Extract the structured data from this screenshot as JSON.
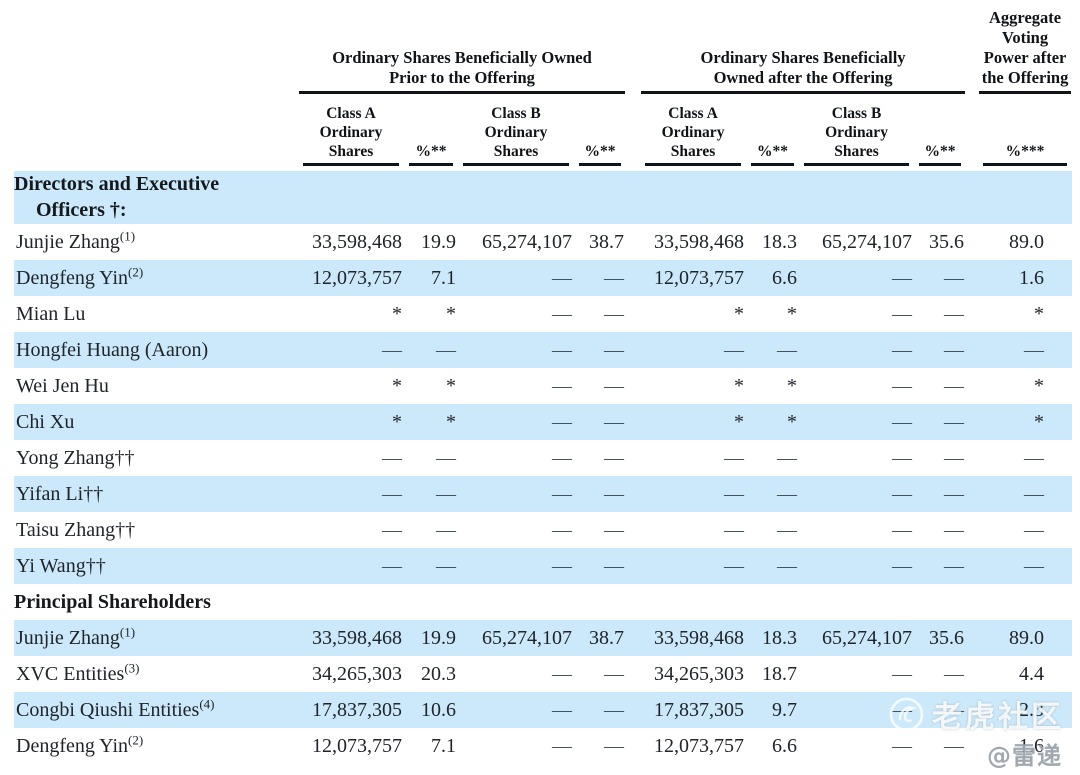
{
  "table": {
    "groups": [
      {
        "lines": [
          "Ordinary Shares Beneficially Owned",
          "Prior to the Offering"
        ],
        "span": 4
      },
      {
        "lines": [
          "Ordinary Shares Beneficially",
          "Owned after the Offering"
        ],
        "span": 4
      },
      {
        "lines": [
          "Aggregate",
          "Voting",
          "Power after",
          "the Offering"
        ],
        "span": 1
      }
    ],
    "columns": [
      {
        "lines": [
          "Class A",
          "Ordinary",
          "Shares"
        ]
      },
      {
        "lines": [
          "%**"
        ]
      },
      {
        "lines": [
          "Class B",
          "Ordinary",
          "Shares"
        ]
      },
      {
        "lines": [
          "%**"
        ]
      },
      {
        "lines": [
          "Class A",
          "Ordinary",
          "Shares"
        ]
      },
      {
        "lines": [
          "%**"
        ]
      },
      {
        "lines": [
          "Class B",
          "Ordinary",
          "Shares"
        ]
      },
      {
        "lines": [
          "%**"
        ]
      },
      {
        "lines": [
          "%***"
        ]
      }
    ],
    "rows": [
      {
        "type": "section",
        "shade": true,
        "lines": [
          "Directors and Executive",
          "Officers †:"
        ]
      },
      {
        "type": "data",
        "shade": false,
        "name": "Junjie Zhang",
        "sup": "(1)",
        "values": [
          "33,598,468",
          "19.9",
          "65,274,107",
          "38.7",
          "33,598,468",
          "18.3",
          "65,274,107",
          "35.6",
          "89.0"
        ]
      },
      {
        "type": "data",
        "shade": true,
        "name": "Dengfeng Yin",
        "sup": "(2)",
        "values": [
          "12,073,757",
          "7.1",
          "—",
          "—",
          "12,073,757",
          "6.6",
          "—",
          "—",
          "1.6"
        ]
      },
      {
        "type": "data",
        "shade": false,
        "name": "Mian Lu",
        "sup": "",
        "values": [
          "*",
          "*",
          "—",
          "—",
          "*",
          "*",
          "—",
          "—",
          "*"
        ]
      },
      {
        "type": "data",
        "shade": true,
        "name": "Hongfei Huang (Aaron)",
        "sup": "",
        "values": [
          "—",
          "—",
          "—",
          "—",
          "—",
          "—",
          "—",
          "—",
          "—"
        ]
      },
      {
        "type": "data",
        "shade": false,
        "name": "Wei Jen Hu",
        "sup": "",
        "values": [
          "*",
          "*",
          "—",
          "—",
          "*",
          "*",
          "—",
          "—",
          "*"
        ]
      },
      {
        "type": "data",
        "shade": true,
        "name": "Chi Xu",
        "sup": "",
        "values": [
          "*",
          "*",
          "—",
          "—",
          "*",
          "*",
          "—",
          "—",
          "*"
        ]
      },
      {
        "type": "data",
        "shade": false,
        "name": "Yong Zhang††",
        "sup": "",
        "values": [
          "—",
          "—",
          "—",
          "—",
          "—",
          "—",
          "—",
          "—",
          "—"
        ]
      },
      {
        "type": "data",
        "shade": true,
        "name": "Yifan Li††",
        "sup": "",
        "values": [
          "—",
          "—",
          "—",
          "—",
          "—",
          "—",
          "—",
          "—",
          "—"
        ]
      },
      {
        "type": "data",
        "shade": false,
        "name": "Taisu Zhang††",
        "sup": "",
        "values": [
          "—",
          "—",
          "—",
          "—",
          "—",
          "—",
          "—",
          "—",
          "—"
        ]
      },
      {
        "type": "data",
        "shade": true,
        "name": "Yi Wang††",
        "sup": "",
        "values": [
          "—",
          "—",
          "—",
          "—",
          "—",
          "—",
          "—",
          "—",
          "—"
        ]
      },
      {
        "type": "section",
        "shade": false,
        "lines": [
          "Principal Shareholders"
        ]
      },
      {
        "type": "data",
        "shade": true,
        "name": "Junjie Zhang",
        "sup": "(1)",
        "values": [
          "33,598,468",
          "19.9",
          "65,274,107",
          "38.7",
          "33,598,468",
          "18.3",
          "65,274,107",
          "35.6",
          "89.0"
        ]
      },
      {
        "type": "data",
        "shade": false,
        "name": "XVC Entities",
        "sup": "(3)",
        "values": [
          "34,265,303",
          "20.3",
          "—",
          "—",
          "34,265,303",
          "18.7",
          "—",
          "—",
          "4.4"
        ]
      },
      {
        "type": "data",
        "shade": true,
        "name": "Congbi Qiushi Entities",
        "sup": "(4)",
        "values": [
          "17,837,305",
          "10.6",
          "—",
          "—",
          "17,837,305",
          "9.7",
          "—",
          "—",
          "2.3"
        ]
      },
      {
        "type": "data",
        "shade": false,
        "name": "Dengfeng Yin",
        "sup": "(2)",
        "values": [
          "12,073,757",
          "7.1",
          "—",
          "—",
          "12,073,757",
          "6.6",
          "—",
          "—",
          "1.6"
        ]
      }
    ],
    "colors": {
      "row_alt": "#cbe9fa",
      "text": "#20242b",
      "rule": "#101418",
      "dash": "#46525c"
    }
  },
  "watermark": {
    "community": "老虎社区",
    "handle": "@雷递",
    "icon": "tiger-community-icon"
  }
}
